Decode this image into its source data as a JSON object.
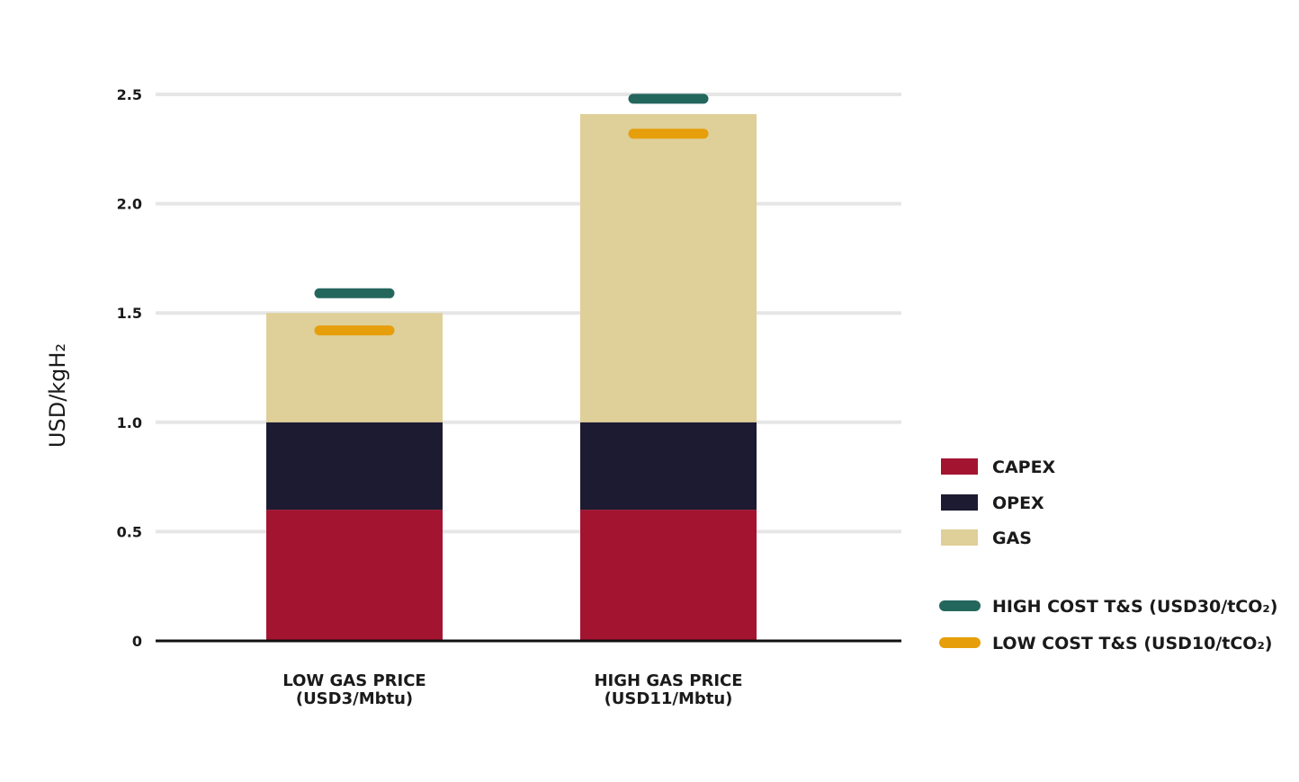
{
  "chart_data": {
    "type": "bar",
    "stacked": true,
    "title": "",
    "xlabel": "",
    "ylabel": "USD/kgH₂",
    "ylim": [
      0,
      2.5
    ],
    "yticks": [
      0,
      0.5,
      1.0,
      1.5,
      2.0,
      2.5
    ],
    "ytick_labels": [
      "0",
      "0.5",
      "1.0",
      "1.5",
      "2.0",
      "2.5"
    ],
    "grid": true,
    "categories": [
      {
        "line1": "LOW GAS PRICE",
        "line2": "(USD3/Mbtu)"
      },
      {
        "line1": "HIGH GAS PRICE",
        "line2": "(USD11/Mbtu)"
      }
    ],
    "series": [
      {
        "name": "CAPEX",
        "color": "#a31431",
        "values": [
          0.6,
          0.6
        ]
      },
      {
        "name": "OPEX",
        "color": "#1d1b31",
        "values": [
          0.4,
          0.4
        ]
      },
      {
        "name": "GAS",
        "color": "#dfcf98",
        "values": [
          0.5,
          1.41
        ]
      }
    ],
    "markers": [
      {
        "name": "HIGH COST T&S (USD30/tCO₂)",
        "color": "#23665c",
        "values": [
          1.59,
          2.48
        ]
      },
      {
        "name": "LOW COST T&S (USD10/tCO₂)",
        "color": "#e69e0a",
        "values": [
          1.42,
          2.32
        ]
      }
    ],
    "legend_position": "right"
  }
}
